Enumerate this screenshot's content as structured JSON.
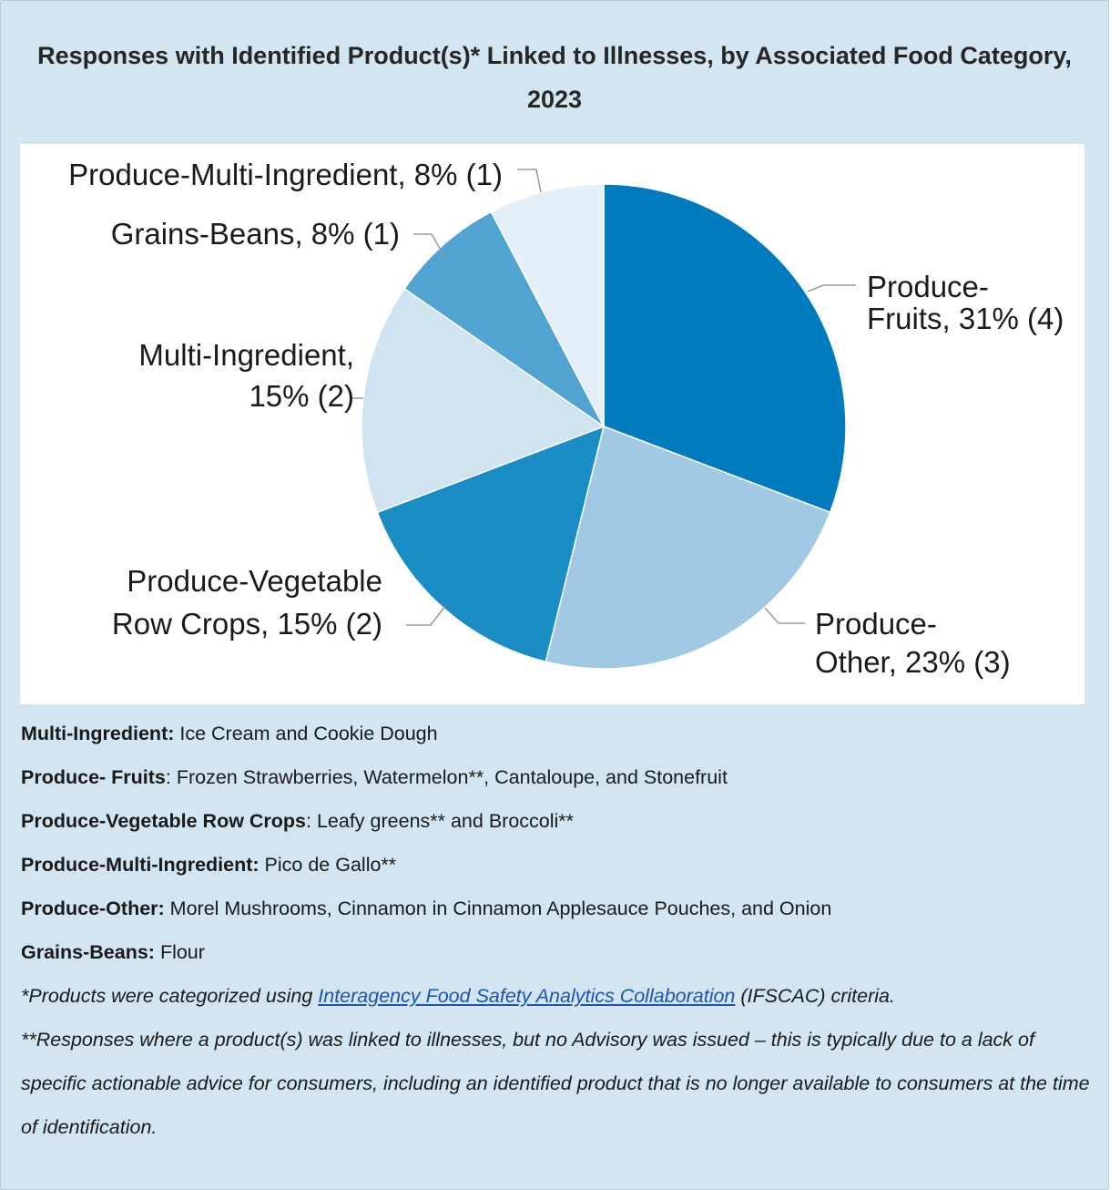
{
  "chart_data": {
    "type": "pie",
    "title": "Responses with Identified Product(s)* Linked to Illnesses, by Associated Food Category, 2023",
    "slices": [
      {
        "name": "Produce-Fruits",
        "label_lines": [
          "Produce-",
          "Fruits, 31% (4)"
        ],
        "percent": 31,
        "count": 4,
        "color": "#007bbd"
      },
      {
        "name": "Produce-Other",
        "label_lines": [
          "Produce-",
          "Other, 23% (3)"
        ],
        "percent": 23,
        "count": 3,
        "color": "#a2c9e3"
      },
      {
        "name": "Produce-Vegetable Row Crops",
        "label_lines": [
          "Produce-Vegetable",
          "Row Crops, 15% (2)"
        ],
        "percent": 15,
        "count": 2,
        "color": "#1a8ec4"
      },
      {
        "name": "Multi-Ingredient",
        "label_lines": [
          "Multi-Ingredient,",
          "15% (2)"
        ],
        "percent": 15,
        "count": 2,
        "color": "#cfe3f0"
      },
      {
        "name": "Grains-Beans",
        "label_lines": [
          "Grains-Beans, 8% (1)"
        ],
        "percent": 8,
        "count": 1,
        "color": "#51a3d1"
      },
      {
        "name": "Produce-Multi-Ingredient",
        "label_lines": [
          "Produce-Multi-Ingredient, 8% (1)"
        ],
        "percent": 8,
        "count": 1,
        "color": "#e5eff7"
      }
    ],
    "start_angle_deg": 0,
    "direction": "clockwise"
  },
  "notes": [
    {
      "term": "Multi-Ingredient:",
      "text": " Ice Cream and Cookie Dough"
    },
    {
      "term": "Produce- Fruits",
      "text": ": Frozen Strawberries, Watermelon**, Cantaloupe, and Stonefruit"
    },
    {
      "term": "Produce-Vegetable Row Crops",
      "text": ": Leafy greens** and Broccoli**"
    },
    {
      "term": "Produce-Multi-Ingredient:",
      "text": " Pico de Gallo**"
    },
    {
      "term": "Produce-Other:",
      "text": " Morel Mushrooms, Cinnamon in Cinnamon Applesauce Pouches, and Onion"
    },
    {
      "term": "Grains-Beans:",
      "text": " Flour"
    }
  ],
  "footnotes": {
    "f1_prefix": "*Products were categorized using ",
    "f1_link": "Interagency Food Safety Analytics Collaboration",
    "f1_suffix": " (IFSCAC) criteria.",
    "f2": "**Responses where a product(s) was linked to illnesses, but no Advisory was issued – this is typically due to a lack of specific actionable advice for consumers, including an identified product that is no longer available to consumers at the time of identification."
  }
}
